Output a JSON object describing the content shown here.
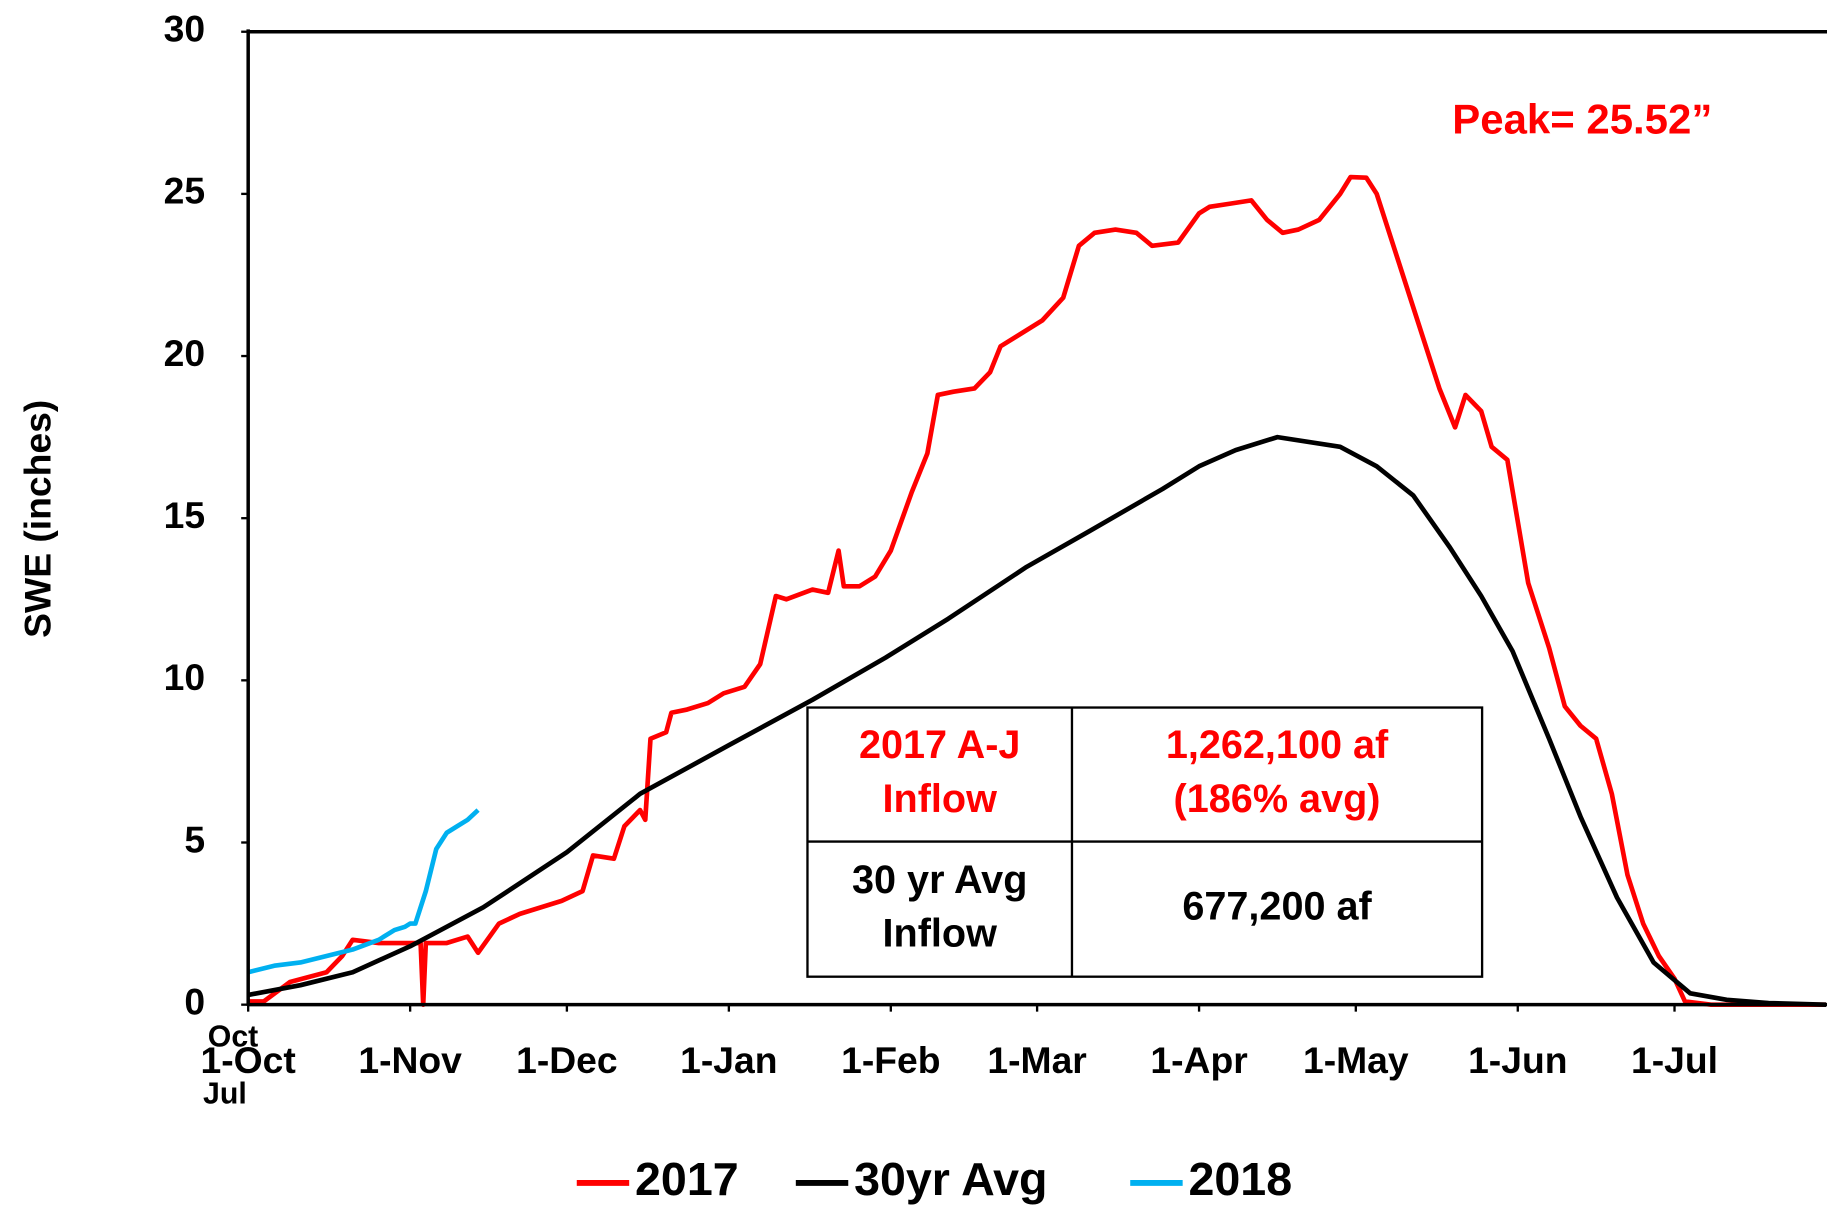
{
  "chart_data": {
    "type": "line",
    "y_axis_label": "SWE (inches)",
    "annotation": "Peak= 25.52”",
    "axis_annotations": [
      "Oct",
      "Jul"
    ],
    "xlim": [
      0,
      302
    ],
    "ylim": [
      0,
      30
    ],
    "yticks": [
      0,
      5,
      10,
      15,
      20,
      25,
      30
    ],
    "xticks": [
      {
        "value": 0,
        "label": "1-Oct"
      },
      {
        "value": 31,
        "label": "1-Nov"
      },
      {
        "value": 61,
        "label": "1-Dec"
      },
      {
        "value": 92,
        "label": "1-Jan"
      },
      {
        "value": 123,
        "label": "1-Feb"
      },
      {
        "value": 151,
        "label": "1-Mar"
      },
      {
        "value": 182,
        "label": "1-Apr"
      },
      {
        "value": 212,
        "label": "1-May"
      },
      {
        "value": 243,
        "label": "1-Jun"
      },
      {
        "value": 273,
        "label": "1-Jul"
      }
    ],
    "series": [
      {
        "name": "2017",
        "color": "#ff0000",
        "x": [
          0,
          3,
          8,
          15,
          18,
          20,
          25,
          30,
          33,
          33.5,
          34,
          38,
          42,
          44,
          48,
          52,
          56,
          60,
          64,
          66,
          70,
          72,
          75,
          76,
          77,
          80,
          81,
          84,
          88,
          91,
          95,
          98,
          101,
          103,
          108,
          111,
          113,
          114,
          117,
          120,
          123,
          127,
          130,
          132,
          135,
          139,
          142,
          144,
          148,
          152,
          156,
          159,
          162,
          166,
          170,
          173,
          178,
          182,
          184,
          188,
          192,
          195,
          198,
          201,
          205,
          209,
          211,
          214,
          216,
          220,
          224,
          228,
          231,
          233,
          236,
          238,
          241,
          245,
          249,
          252,
          255,
          258,
          261,
          264,
          267,
          270,
          273,
          275,
          280,
          302
        ],
        "values": [
          0.1,
          0.1,
          0.7,
          1.0,
          1.5,
          2.0,
          1.9,
          1.9,
          1.9,
          0,
          1.9,
          1.9,
          2.1,
          1.6,
          2.5,
          2.8,
          3.0,
          3.2,
          3.5,
          4.6,
          4.5,
          5.5,
          6.0,
          5.7,
          8.2,
          8.4,
          9.0,
          9.1,
          9.3,
          9.6,
          9.8,
          10.5,
          12.6,
          12.5,
          12.8,
          12.7,
          14.0,
          12.9,
          12.9,
          13.2,
          14.0,
          15.8,
          17.0,
          18.8,
          18.9,
          19.0,
          19.5,
          20.3,
          20.7,
          21.1,
          21.8,
          23.4,
          23.8,
          23.9,
          23.8,
          23.4,
          23.5,
          24.4,
          24.6,
          24.7,
          24.8,
          24.2,
          23.8,
          23.9,
          24.2,
          25.0,
          25.52,
          25.5,
          25.0,
          23.0,
          21.0,
          19.0,
          17.8,
          18.8,
          18.3,
          17.2,
          16.8,
          13.0,
          11.0,
          9.2,
          8.6,
          8.2,
          6.5,
          4.0,
          2.5,
          1.5,
          0.8,
          0.1,
          0.0,
          0.0
        ]
      },
      {
        "name": "30yr Avg",
        "color": "#000000",
        "x": [
          0,
          10,
          20,
          31,
          45,
          61,
          75,
          92,
          108,
          122,
          134,
          149,
          161,
          175,
          182,
          189,
          197,
          209,
          216,
          223,
          230,
          236,
          242,
          249,
          255,
          262,
          269,
          276,
          283,
          291,
          302
        ],
        "values": [
          0.3,
          0.6,
          1.0,
          1.8,
          3.0,
          4.7,
          6.5,
          8.0,
          9.4,
          10.7,
          11.9,
          13.5,
          14.6,
          15.9,
          16.6,
          17.1,
          17.5,
          17.2,
          16.6,
          15.7,
          14.1,
          12.6,
          10.9,
          8.2,
          5.8,
          3.3,
          1.3,
          0.35,
          0.15,
          0.05,
          0
        ]
      },
      {
        "name": "2018",
        "color": "#00b0f0",
        "x": [
          0,
          5,
          10,
          15,
          20,
          25,
          28,
          30,
          31,
          32,
          34,
          36,
          38,
          40,
          42,
          44
        ],
        "values": [
          1.0,
          1.2,
          1.3,
          1.5,
          1.7,
          2.0,
          2.3,
          2.4,
          2.5,
          2.5,
          3.5,
          4.8,
          5.3,
          5.5,
          5.7,
          6.0
        ]
      }
    ],
    "table": {
      "rows": [
        [
          [
            "2017 A-J",
            "Inflow"
          ],
          [
            "1,262,100 af",
            "(186% avg)"
          ]
        ],
        [
          [
            "30 yr Avg",
            "Inflow"
          ],
          [
            "677,200 af"
          ]
        ]
      ]
    }
  }
}
